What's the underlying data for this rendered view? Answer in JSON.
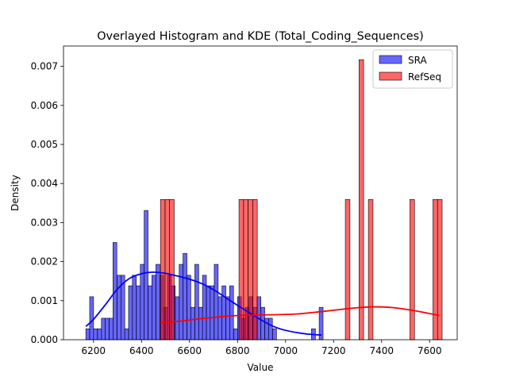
{
  "chart_data": {
    "type": "bar",
    "title": "Overlayed Histogram and KDE (Total_Coding_Sequences)",
    "xlabel": "Value",
    "ylabel": "Density",
    "xlim": [
      6075,
      7715
    ],
    "ylim": [
      0,
      0.00752
    ],
    "xticks": [
      6200,
      6400,
      6600,
      6800,
      7000,
      7200,
      7400,
      7600
    ],
    "yticks": [
      0.0,
      0.001,
      0.002,
      0.003,
      0.004,
      0.005,
      0.006,
      0.007
    ],
    "ytick_labels": [
      "0.000",
      "0.001",
      "0.002",
      "0.003",
      "0.004",
      "0.005",
      "0.006",
      "0.007"
    ],
    "legend_position": "top-right",
    "series": [
      {
        "name": "SRA",
        "color": "#0000ff",
        "bin_width": 16.2,
        "bins": [
          [
            6168,
            0.00028
          ],
          [
            6184,
            0.0011
          ],
          [
            6200,
            0.00028
          ],
          [
            6217,
            0.00028
          ],
          [
            6233,
            0.00055
          ],
          [
            6249,
            0.00055
          ],
          [
            6265,
            0.00055
          ],
          [
            6281,
            0.00249
          ],
          [
            6298,
            0.00165
          ],
          [
            6314,
            0.00165
          ],
          [
            6330,
            0.00028
          ],
          [
            6346,
            0.00138
          ],
          [
            6362,
            0.00165
          ],
          [
            6379,
            0.00138
          ],
          [
            6395,
            0.00193
          ],
          [
            6411,
            0.00331
          ],
          [
            6427,
            0.00138
          ],
          [
            6443,
            0.00165
          ],
          [
            6460,
            0.00193
          ],
          [
            6476,
            0.00165
          ],
          [
            6492,
            0.00083
          ],
          [
            6508,
            0.00165
          ],
          [
            6524,
            0.00138
          ],
          [
            6541,
            0.0011
          ],
          [
            6557,
            0.00193
          ],
          [
            6573,
            0.00221
          ],
          [
            6589,
            0.00165
          ],
          [
            6605,
            0.00083
          ],
          [
            6622,
            0.00193
          ],
          [
            6638,
            0.00083
          ],
          [
            6654,
            0.00165
          ],
          [
            6670,
            0.00138
          ],
          [
            6686,
            0.00138
          ],
          [
            6703,
            0.00193
          ],
          [
            6719,
            0.0011
          ],
          [
            6735,
            0.00138
          ],
          [
            6751,
            0.0011
          ],
          [
            6767,
            0.00138
          ],
          [
            6784,
            0.00028
          ],
          [
            6800,
            0.0011
          ],
          [
            6816,
            0.00055
          ],
          [
            6832,
            0.00083
          ],
          [
            6848,
            0.0011
          ],
          [
            6865,
            0.00083
          ],
          [
            6881,
            0.0011
          ],
          [
            6897,
            0.00083
          ],
          [
            6913,
            0.00055
          ],
          [
            6929,
            0.00055
          ],
          [
            6946,
            0.00028
          ],
          [
            7108,
            0.00028
          ],
          [
            7140,
            0.00083
          ]
        ],
        "kde": [
          [
            6168,
            0.00034
          ],
          [
            6200,
            0.00052
          ],
          [
            6250,
            0.0009
          ],
          [
            6300,
            0.0013
          ],
          [
            6350,
            0.00157
          ],
          [
            6400,
            0.00169
          ],
          [
            6450,
            0.00173
          ],
          [
            6500,
            0.0017
          ],
          [
            6550,
            0.00163
          ],
          [
            6600,
            0.00155
          ],
          [
            6650,
            0.00144
          ],
          [
            6700,
            0.00128
          ],
          [
            6750,
            0.00108
          ],
          [
            6800,
            0.00088
          ],
          [
            6850,
            0.00069
          ],
          [
            6900,
            0.0005
          ],
          [
            6950,
            0.00034
          ],
          [
            7000,
            0.00024
          ],
          [
            7050,
            0.00018
          ],
          [
            7100,
            0.00014
          ],
          [
            7150,
            0.00012
          ]
        ]
      },
      {
        "name": "RefSeq",
        "color": "#ff0000",
        "bin_width": 19.2,
        "bins": [
          [
            6479,
            0.00359
          ],
          [
            6498,
            0.00359
          ],
          [
            6517,
            0.00359
          ],
          [
            6806,
            0.00359
          ],
          [
            6825,
            0.00359
          ],
          [
            6844,
            0.00359
          ],
          [
            6863,
            0.00359
          ],
          [
            7249,
            0.00359
          ],
          [
            7306,
            0.00717
          ],
          [
            7345,
            0.00359
          ],
          [
            7518,
            0.00359
          ],
          [
            7614,
            0.00359
          ],
          [
            7633,
            0.00359
          ]
        ],
        "kde": [
          [
            6479,
            0.00043
          ],
          [
            6550,
            0.00047
          ],
          [
            6650,
            0.00054
          ],
          [
            6750,
            0.0006
          ],
          [
            6850,
            0.00063
          ],
          [
            6950,
            0.00064
          ],
          [
            7050,
            0.00066
          ],
          [
            7150,
            0.00072
          ],
          [
            7250,
            0.00079
          ],
          [
            7300,
            0.00082
          ],
          [
            7350,
            0.00084
          ],
          [
            7400,
            0.00084
          ],
          [
            7450,
            0.00082
          ],
          [
            7500,
            0.00078
          ],
          [
            7550,
            0.00073
          ],
          [
            7600,
            0.00067
          ],
          [
            7640,
            0.00062
          ]
        ]
      }
    ]
  }
}
